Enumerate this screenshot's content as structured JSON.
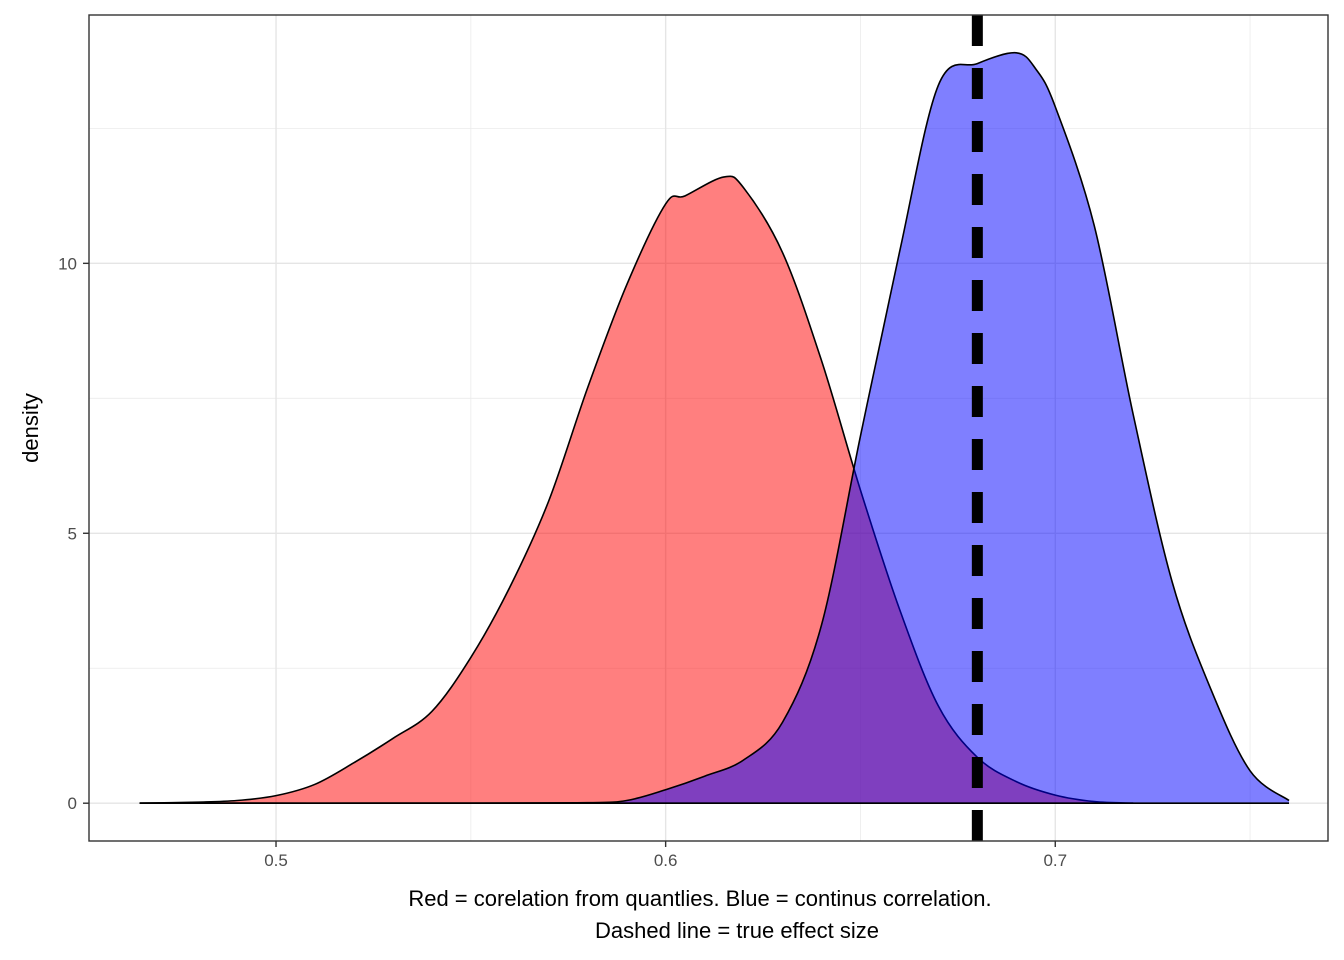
{
  "chart_data": {
    "type": "area",
    "xlabel_lines": [
      "Red = corelation from quantlies.  Blue = continus correlation.",
      "Dashed line = true effect size"
    ],
    "ylabel": "density",
    "xlim": [
      0.452,
      0.77
    ],
    "ylim": [
      -0.7,
      14.6
    ],
    "x_ticks": [
      0.5,
      0.6,
      0.7
    ],
    "x_tick_labels": [
      "0.5",
      "0.6",
      "0.7"
    ],
    "y_ticks": [
      0,
      5,
      10
    ],
    "y_tick_labels": [
      "0",
      "5",
      "10"
    ],
    "grid": true,
    "reference_line": {
      "x": 0.68,
      "style": "dashed",
      "color": "#000000"
    },
    "series": [
      {
        "color": "#ff0000",
        "opacity": 0.5,
        "points": [
          [
            0.465,
            0.0
          ],
          [
            0.48,
            0.02
          ],
          [
            0.49,
            0.05
          ],
          [
            0.5,
            0.14
          ],
          [
            0.51,
            0.35
          ],
          [
            0.52,
            0.75
          ],
          [
            0.53,
            1.2
          ],
          [
            0.54,
            1.7
          ],
          [
            0.55,
            2.7
          ],
          [
            0.56,
            4.0
          ],
          [
            0.57,
            5.6
          ],
          [
            0.58,
            7.7
          ],
          [
            0.59,
            9.6
          ],
          [
            0.6,
            11.1
          ],
          [
            0.605,
            11.25
          ],
          [
            0.615,
            11.6
          ],
          [
            0.62,
            11.4
          ],
          [
            0.63,
            10.2
          ],
          [
            0.64,
            8.2
          ],
          [
            0.65,
            5.8
          ],
          [
            0.66,
            3.6
          ],
          [
            0.67,
            1.8
          ],
          [
            0.68,
            0.85
          ],
          [
            0.69,
            0.4
          ],
          [
            0.7,
            0.15
          ],
          [
            0.71,
            0.03
          ],
          [
            0.72,
            0.0
          ]
        ]
      },
      {
        "color": "#0000ff",
        "opacity": 0.5,
        "points": [
          [
            0.465,
            0.0
          ],
          [
            0.55,
            0.0
          ],
          [
            0.58,
            0.01
          ],
          [
            0.59,
            0.05
          ],
          [
            0.6,
            0.25
          ],
          [
            0.61,
            0.5
          ],
          [
            0.62,
            0.8
          ],
          [
            0.63,
            1.5
          ],
          [
            0.64,
            3.3
          ],
          [
            0.65,
            6.8
          ],
          [
            0.66,
            10.2
          ],
          [
            0.67,
            13.3
          ],
          [
            0.68,
            13.7
          ],
          [
            0.69,
            13.9
          ],
          [
            0.695,
            13.6
          ],
          [
            0.7,
            12.9
          ],
          [
            0.71,
            10.7
          ],
          [
            0.72,
            7.2
          ],
          [
            0.73,
            4.1
          ],
          [
            0.74,
            2.1
          ],
          [
            0.75,
            0.6
          ],
          [
            0.76,
            0.05
          ]
        ]
      }
    ]
  }
}
